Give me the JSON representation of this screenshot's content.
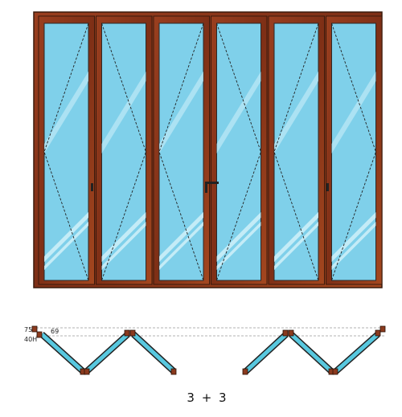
{
  "labels": {
    "offset": "75",
    "height": "40H",
    "angle": "69"
  },
  "caption": "3 + 3"
}
